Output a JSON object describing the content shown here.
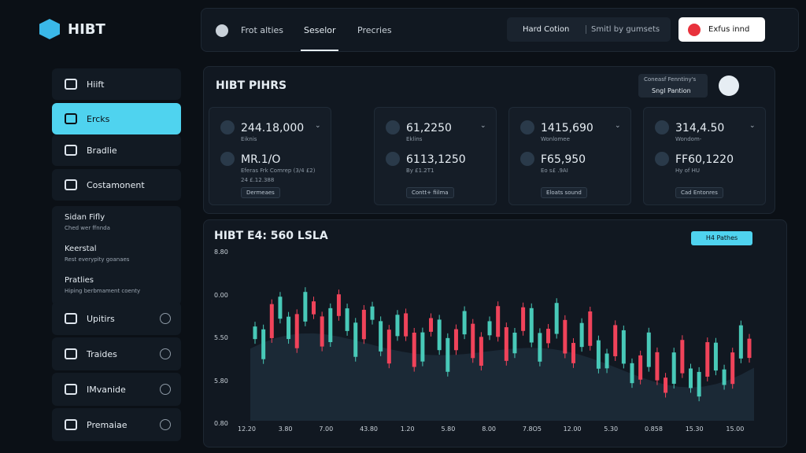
{
  "brand": "HIBT",
  "topbar": {
    "tabs": [
      "Frot alties",
      "Seselor",
      "Precries"
    ],
    "segment": [
      "Hard Cotion",
      "Smitl by gumsets"
    ],
    "button": "Exfus innd"
  },
  "sidebar": {
    "items_top": [
      "Hiift",
      "Ercks",
      "Bradlie",
      "Costamonent"
    ],
    "groups": [
      {
        "title": "Sidan Fifly",
        "sub": "Ched wer ffnnda"
      },
      {
        "title": "Keerstal",
        "sub": "Rest everypity goanaes"
      },
      {
        "title": "Pratlies",
        "sub": "Hiping berbmament coenty"
      }
    ],
    "items_bottom": [
      "Upitirs",
      "Traides",
      "IMvanide",
      "Premaiae"
    ]
  },
  "pairs": {
    "title": "HIBT PIHRS",
    "select": [
      "Coneasf Fenntiny's",
      "Sngl Pantion"
    ],
    "cards": [
      {
        "value": "244.18,000",
        "label": "Eiknis",
        "value2": "MR.1/O",
        "label2": "Eferas Frk Comrep (3/4 £2)",
        "note": "24 £.12.388",
        "badge": "Dermeaes"
      },
      {
        "value": "61,2250",
        "label": "Eklins",
        "value2": "6113,1250",
        "label2": "By £1.2T1",
        "badge": "Contt+ fiilma"
      },
      {
        "value": "1415,690",
        "label": "Wonlomee",
        "value2": "F65,950",
        "label2": "Eo s£ .9AI",
        "badge": "Eloats sound"
      },
      {
        "value": "314,4.50",
        "label": "Wondom-",
        "value2": "FF60,1220",
        "label2": "Hy of HU",
        "badge": "Cad Entonres"
      }
    ]
  },
  "market": {
    "title": "HIBT E4: 560 LSLA",
    "button": "H4 Pathes",
    "y_labels": [
      "8.80",
      "0.00",
      "5.50",
      "5.80",
      "0.80"
    ],
    "x_labels": [
      "12.20",
      "3.80",
      "7.00",
      "43.80",
      "1.20",
      "5.80",
      "8.00",
      "7.8O5",
      "12.00",
      "5.30",
      "0.858",
      "15.30",
      "15.00"
    ]
  }
}
